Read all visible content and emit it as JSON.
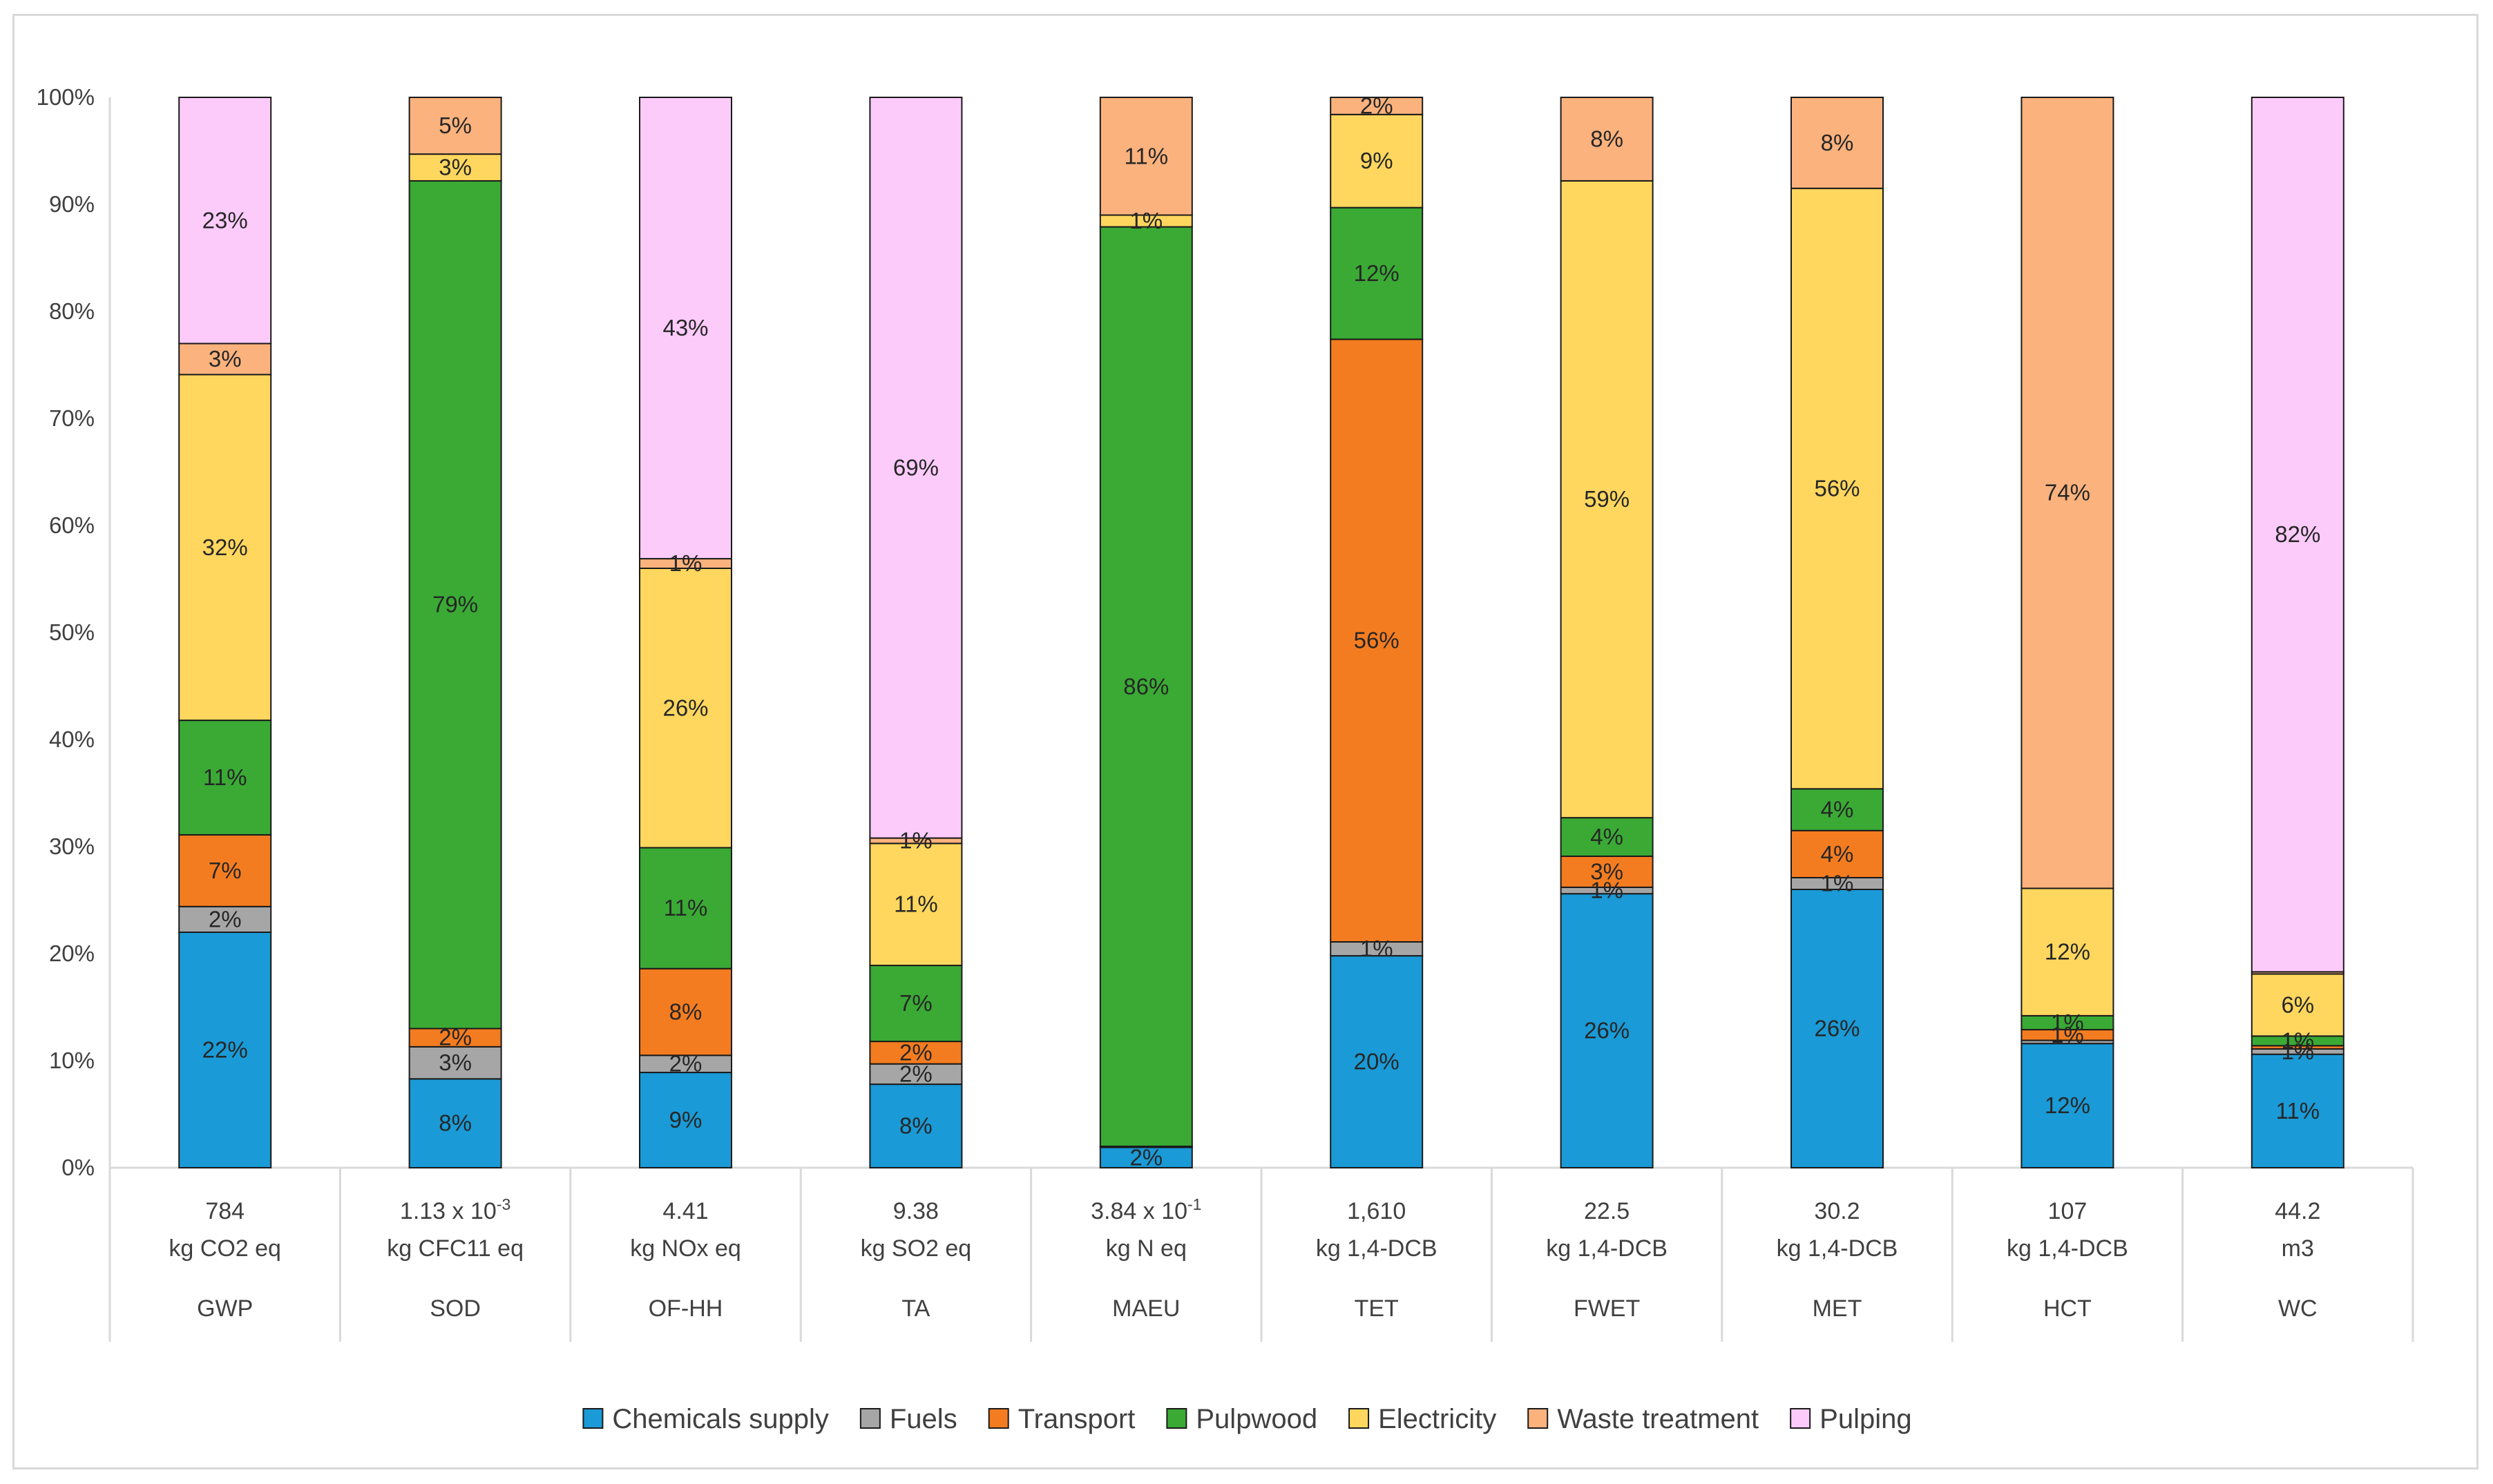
{
  "chart_data": {
    "type": "bar",
    "stacked": true,
    "normalized": true,
    "title": "",
    "xlabel": "",
    "ylabel": "",
    "ylim": [
      0,
      100
    ],
    "y_ticks": [
      "0%",
      "10%",
      "20%",
      "30%",
      "40%",
      "50%",
      "60%",
      "70%",
      "80%",
      "90%",
      "100%"
    ],
    "grid": false,
    "legend_position": "bottom",
    "categories": [
      {
        "code": "GWP",
        "value": "784",
        "unit": "kg CO2 eq",
        "exp": ""
      },
      {
        "code": "SOD",
        "value": "1.13 x 10",
        "unit": "kg CFC11 eq",
        "exp": "-3"
      },
      {
        "code": "OF-HH",
        "value": "4.41",
        "unit": "kg NOx eq",
        "exp": ""
      },
      {
        "code": "TA",
        "value": "9.38",
        "unit": "kg SO2 eq",
        "exp": ""
      },
      {
        "code": "MAEU",
        "value": "3.84 x 10",
        "unit": "kg N eq",
        "exp": "-1"
      },
      {
        "code": "TET",
        "value": "1,610",
        "unit": "kg 1,4-DCB",
        "exp": ""
      },
      {
        "code": "FWET",
        "value": "22.5",
        "unit": "kg 1,4-DCB",
        "exp": ""
      },
      {
        "code": "MET",
        "value": "30.2",
        "unit": "kg 1,4-DCB",
        "exp": ""
      },
      {
        "code": "HCT",
        "value": "107",
        "unit": "kg 1,4-DCB",
        "exp": ""
      },
      {
        "code": "WC",
        "value": "44.2",
        "unit": "m3",
        "exp": ""
      }
    ],
    "series": [
      {
        "name": "Chemicals supply",
        "color": "#1a9ad6",
        "values": [
          22.0,
          8.3,
          8.9,
          7.8,
          1.9,
          19.8,
          25.6,
          26.0,
          11.6,
          10.6
        ],
        "labels": [
          "22%",
          "8%",
          "9%",
          "8%",
          "2%",
          "20%",
          "26%",
          "26%",
          "12%",
          "11%"
        ]
      },
      {
        "name": "Fuels",
        "color": "#a6a6a6",
        "values": [
          2.4,
          3.0,
          1.6,
          1.9,
          0.1,
          1.3,
          0.6,
          1.1,
          0.3,
          0.5
        ],
        "labels": [
          "2%",
          "3%",
          "2%",
          "2%",
          "",
          "1%",
          "1%",
          "1%",
          "",
          "1%"
        ]
      },
      {
        "name": "Transport",
        "color": "#f47c20",
        "values": [
          6.7,
          1.7,
          8.1,
          2.1,
          0.0,
          56.3,
          2.9,
          4.4,
          1.0,
          0.3
        ],
        "labels": [
          "7%",
          "2%",
          "8%",
          "2%",
          "",
          "56%",
          "3%",
          "4%",
          "1%",
          ""
        ]
      },
      {
        "name": "Pulpwood",
        "color": "#3aaa35",
        "values": [
          10.7,
          79.2,
          11.3,
          7.1,
          85.9,
          12.3,
          3.6,
          3.9,
          1.3,
          0.9
        ],
        "labels": [
          "11%",
          "79%",
          "11%",
          "7%",
          "86%",
          "12%",
          "4%",
          "4%",
          "1%",
          "1%"
        ]
      },
      {
        "name": "Electricity",
        "color": "#ffd75e",
        "values": [
          32.3,
          2.5,
          26.1,
          11.4,
          1.1,
          8.7,
          59.5,
          56.1,
          11.9,
          5.8
        ],
        "labels": [
          "32%",
          "3%",
          "26%",
          "11%",
          "1%",
          "9%",
          "59%",
          "56%",
          "12%",
          "6%"
        ]
      },
      {
        "name": "Waste treatment",
        "color": "#fbb27d",
        "values": [
          2.9,
          5.3,
          0.9,
          0.5,
          11.0,
          1.6,
          7.8,
          8.5,
          73.9,
          0.2
        ],
        "labels": [
          "3%",
          "5%",
          "1%",
          "1%",
          "11%",
          "2%",
          "8%",
          "8%",
          "74%",
          ""
        ]
      },
      {
        "name": "Pulping",
        "color": "#fccbfa",
        "values": [
          23.0,
          0.0,
          43.1,
          69.2,
          0.0,
          0.0,
          0.0,
          0.0,
          0.0,
          81.7
        ],
        "labels": [
          "23%",
          "",
          "43%",
          "69%",
          "",
          "",
          "",
          "",
          "",
          "82%"
        ]
      }
    ]
  }
}
